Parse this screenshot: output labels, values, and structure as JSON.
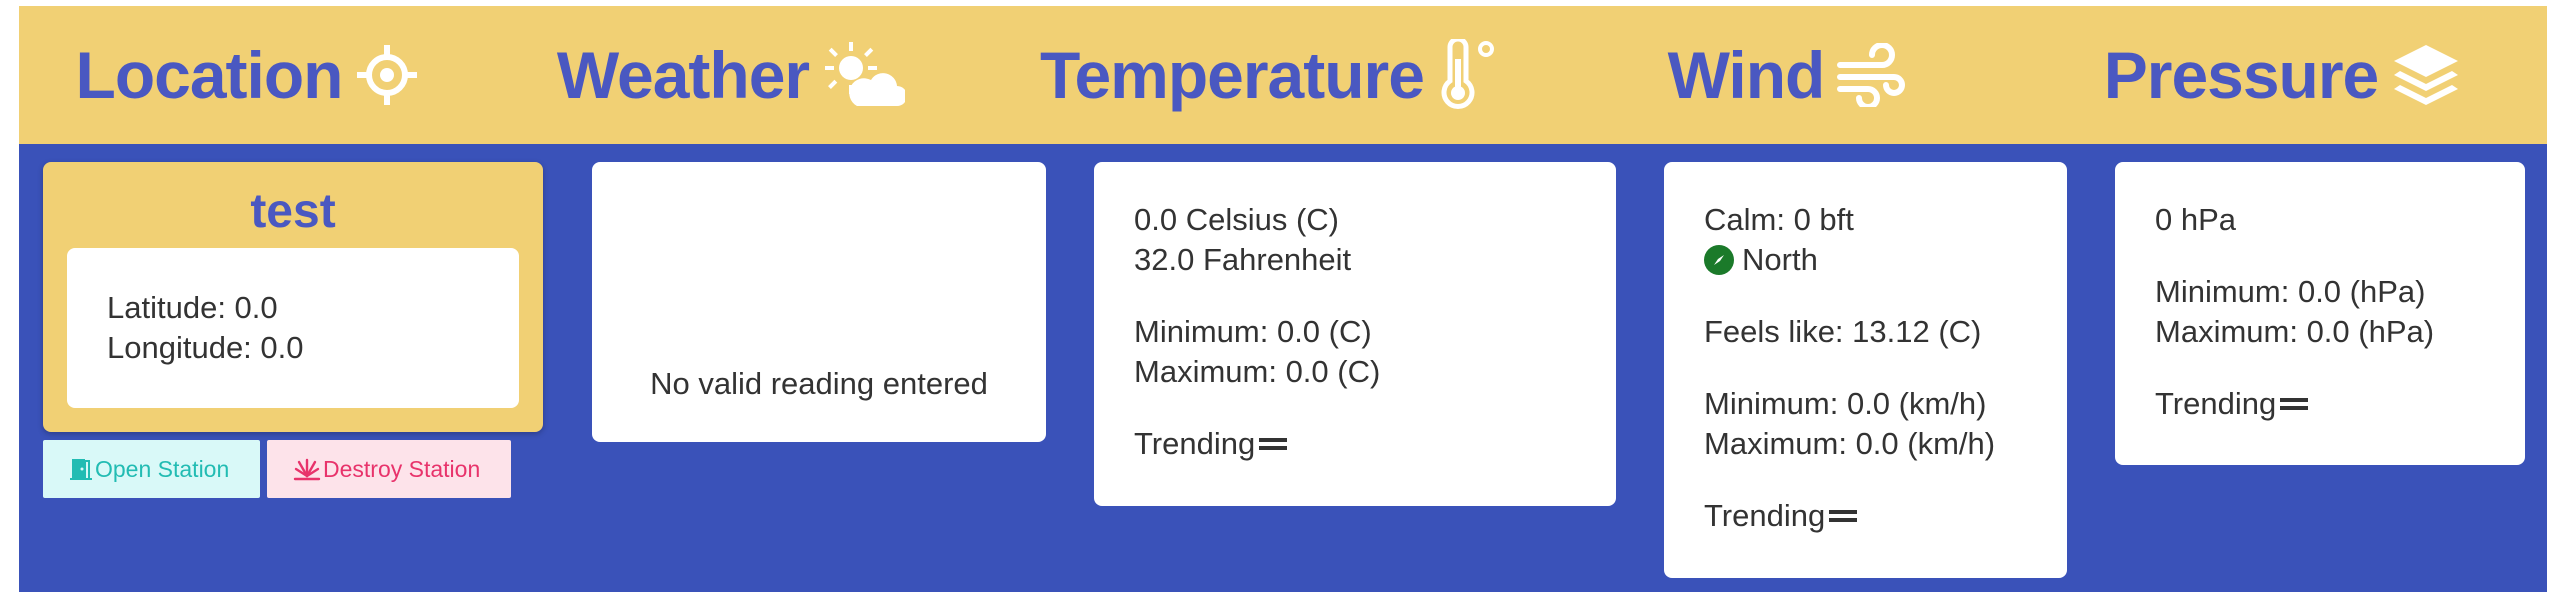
{
  "header": {
    "location": {
      "label": "Location",
      "icon": "crosshair-icon"
    },
    "weather": {
      "label": "Weather",
      "icon": "partly-sunny-icon"
    },
    "temperature": {
      "label": "Temperature",
      "icon": "thermometer-degree-icon"
    },
    "wind": {
      "label": "Wind",
      "icon": "wind-icon"
    },
    "pressure": {
      "label": "Pressure",
      "icon": "layers-icon"
    }
  },
  "colors": {
    "header_bg": "#f1d074",
    "body_bg": "#3a52b9",
    "title": "#4a58c1",
    "open_bg": "#d9f9f8",
    "open_text": "#22bcb3",
    "destroy_bg": "#fde3ea",
    "destroy_text": "#e8336b",
    "compass": "#1b7a2a"
  },
  "station": {
    "name": "test",
    "latitude": "Latitude: 0.0",
    "longitude": "Longitude: 0.0",
    "open_label": "Open Station",
    "destroy_label": "Destroy Station"
  },
  "weather": {
    "message": "No valid reading entered"
  },
  "temperature": {
    "celsius": "0.0 Celsius (C)",
    "fahrenheit": "32.0 Fahrenheit",
    "minimum": "Minimum: 0.0 (C)",
    "maximum": "Maximum: 0.0 (C)",
    "trending": "Trending"
  },
  "wind": {
    "beaufort": "Calm: 0 bft",
    "direction": "North",
    "feels_like": "Feels like: 13.12 (C)",
    "minimum": "Minimum: 0.0 (km/h)",
    "maximum": "Maximum: 0.0 (km/h)",
    "trending": "Trending"
  },
  "pressure": {
    "value": "0 hPa",
    "minimum": "Minimum: 0.0 (hPa)",
    "maximum": "Maximum: 0.0 (hPa)",
    "trending": "Trending"
  }
}
